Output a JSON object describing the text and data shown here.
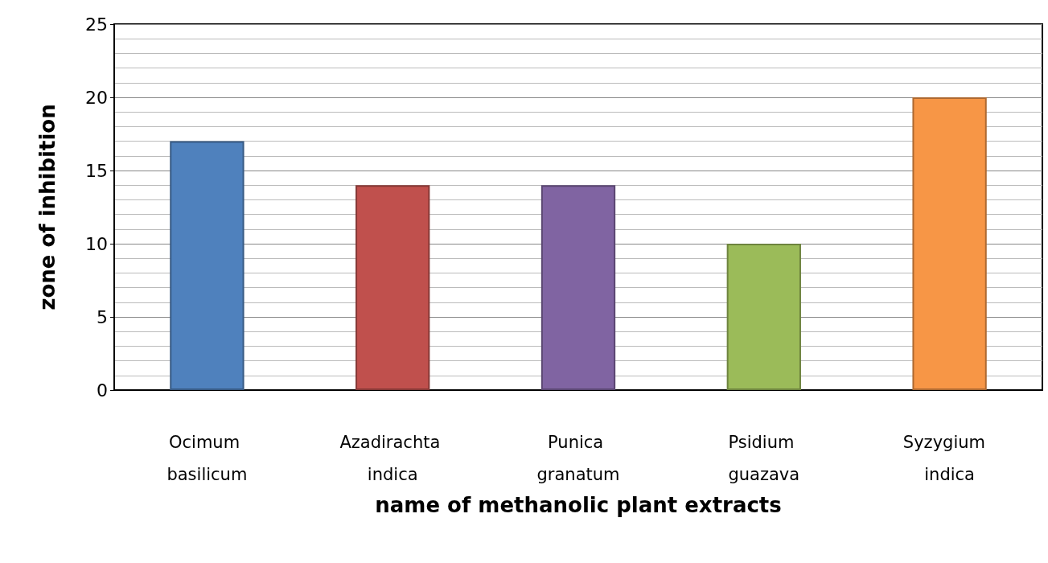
{
  "chart_data": {
    "type": "bar",
    "xlabel": "name of methanolic plant extracts",
    "ylabel": "zone of inhibition",
    "categories": [
      "Ocimum basilicum",
      "Azadirachta indica",
      "Punica granatum",
      "Psidium guazava",
      "Syzygium  indica"
    ],
    "values": [
      17,
      14,
      14,
      10,
      20
    ],
    "colors": [
      "#4f81bd",
      "#c0504d",
      "#8064a2",
      "#9bbb59",
      "#f79646"
    ],
    "ylim": [
      0,
      25
    ],
    "yticks": [
      0,
      5,
      10,
      15,
      20,
      25
    ],
    "grid": true
  }
}
